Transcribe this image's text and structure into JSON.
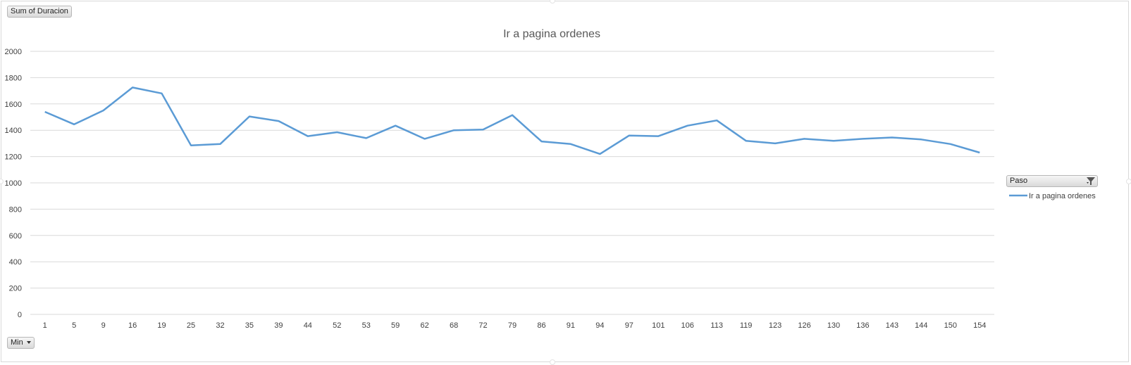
{
  "pivot": {
    "value_field_label": "Sum of Duracion",
    "axis_field_label": "Min",
    "legend_field_label": "Paso"
  },
  "colors": {
    "series": "#5b9bd5",
    "grid": "#d9d9d9"
  },
  "chart_data": {
    "type": "line",
    "title": "Ir a pagina ordenes",
    "xlabel": "",
    "ylabel": "",
    "ylim": [
      0,
      2000
    ],
    "yticks": [
      0,
      200,
      400,
      600,
      800,
      1000,
      1200,
      1400,
      1600,
      1800,
      2000
    ],
    "grid": true,
    "legend_position": "right",
    "categories": [
      "1",
      "5",
      "9",
      "16",
      "19",
      "25",
      "32",
      "35",
      "39",
      "44",
      "52",
      "53",
      "59",
      "62",
      "68",
      "72",
      "79",
      "86",
      "91",
      "94",
      "97",
      "101",
      "106",
      "113",
      "119",
      "123",
      "126",
      "130",
      "136",
      "143",
      "144",
      "150",
      "154"
    ],
    "series": [
      {
        "name": "Ir a pagina ordenes",
        "values": [
          1540,
          1445,
          1550,
          1725,
          1680,
          1285,
          1295,
          1505,
          1470,
          1355,
          1385,
          1340,
          1435,
          1335,
          1400,
          1405,
          1515,
          1315,
          1295,
          1220,
          1360,
          1355,
          1435,
          1475,
          1320,
          1300,
          1335,
          1320,
          1335,
          1345,
          1330,
          1295,
          1230
        ]
      }
    ]
  }
}
